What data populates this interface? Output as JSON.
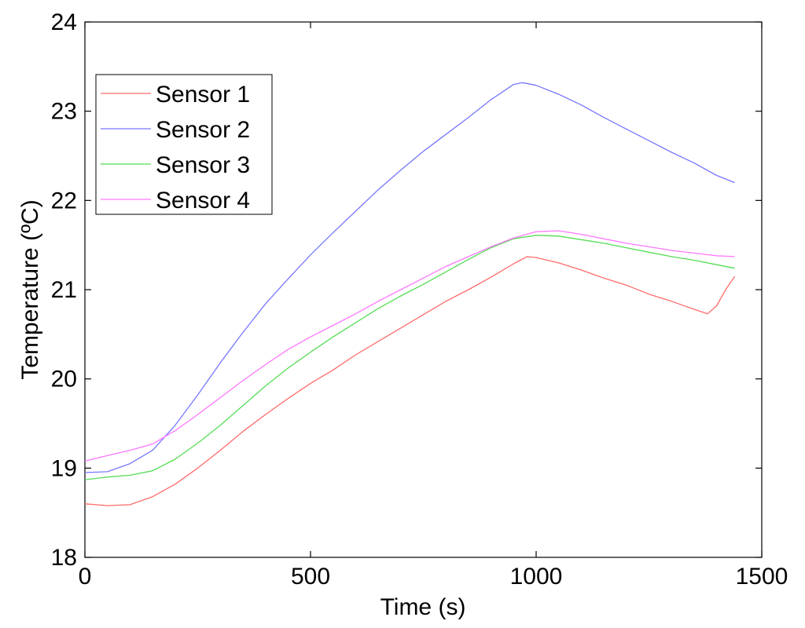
{
  "chart_data": {
    "type": "line",
    "xlabel": "Time (s)",
    "ylabel": "Temperature (ºC)",
    "xlim": [
      0,
      1500
    ],
    "ylim": [
      18,
      24
    ],
    "xticks": [
      0,
      500,
      1000,
      1500
    ],
    "yticks": [
      18,
      19,
      20,
      21,
      22,
      23,
      24
    ],
    "grid": false,
    "legend_position": "top-left",
    "series": [
      {
        "name": "Sensor 1",
        "color": "#ff6b6b",
        "x": [
          0,
          50,
          100,
          150,
          200,
          250,
          300,
          350,
          400,
          450,
          500,
          550,
          600,
          650,
          700,
          750,
          800,
          850,
          900,
          950,
          980,
          1000,
          1050,
          1100,
          1150,
          1200,
          1250,
          1300,
          1350,
          1380,
          1400,
          1420,
          1440
        ],
        "y": [
          18.6,
          18.58,
          18.59,
          18.68,
          18.82,
          19.0,
          19.2,
          19.41,
          19.6,
          19.78,
          19.95,
          20.1,
          20.27,
          20.42,
          20.57,
          20.72,
          20.87,
          21.0,
          21.14,
          21.29,
          21.37,
          21.36,
          21.3,
          21.22,
          21.13,
          21.05,
          20.95,
          20.87,
          20.78,
          20.73,
          20.82,
          21.0,
          21.15
        ]
      },
      {
        "name": "Sensor 2",
        "color": "#7777ff",
        "x": [
          0,
          50,
          100,
          150,
          200,
          250,
          300,
          350,
          400,
          450,
          500,
          550,
          600,
          650,
          700,
          750,
          800,
          850,
          900,
          950,
          970,
          1000,
          1050,
          1100,
          1150,
          1200,
          1250,
          1300,
          1350,
          1400,
          1440
        ],
        "y": [
          18.95,
          18.96,
          19.05,
          19.2,
          19.48,
          19.82,
          20.18,
          20.52,
          20.84,
          21.12,
          21.39,
          21.64,
          21.88,
          22.12,
          22.34,
          22.55,
          22.74,
          22.93,
          23.13,
          23.3,
          23.32,
          23.29,
          23.19,
          23.07,
          22.93,
          22.8,
          22.67,
          22.54,
          22.42,
          22.28,
          22.2
        ]
      },
      {
        "name": "Sensor 3",
        "color": "#55dd55",
        "x": [
          0,
          50,
          100,
          150,
          200,
          250,
          300,
          350,
          400,
          450,
          500,
          550,
          600,
          650,
          700,
          750,
          800,
          850,
          900,
          950,
          1000,
          1050,
          1100,
          1150,
          1200,
          1250,
          1300,
          1350,
          1400,
          1440
        ],
        "y": [
          18.87,
          18.9,
          18.92,
          18.97,
          19.1,
          19.28,
          19.48,
          19.7,
          19.92,
          20.12,
          20.3,
          20.47,
          20.63,
          20.79,
          20.93,
          21.06,
          21.2,
          21.34,
          21.47,
          21.57,
          21.61,
          21.6,
          21.56,
          21.52,
          21.47,
          21.42,
          21.37,
          21.33,
          21.28,
          21.24
        ]
      },
      {
        "name": "Sensor 4",
        "color": "#ff77ff",
        "x": [
          0,
          50,
          100,
          150,
          200,
          250,
          300,
          350,
          400,
          450,
          500,
          550,
          600,
          650,
          700,
          750,
          800,
          850,
          900,
          950,
          1000,
          1050,
          1100,
          1150,
          1200,
          1250,
          1300,
          1350,
          1400,
          1440
        ],
        "y": [
          19.08,
          19.14,
          19.2,
          19.27,
          19.42,
          19.6,
          19.79,
          19.98,
          20.16,
          20.33,
          20.47,
          20.6,
          20.73,
          20.87,
          21.0,
          21.13,
          21.26,
          21.37,
          21.48,
          21.58,
          21.65,
          21.66,
          21.62,
          21.57,
          21.52,
          21.48,
          21.44,
          21.41,
          21.38,
          21.37
        ]
      }
    ]
  }
}
